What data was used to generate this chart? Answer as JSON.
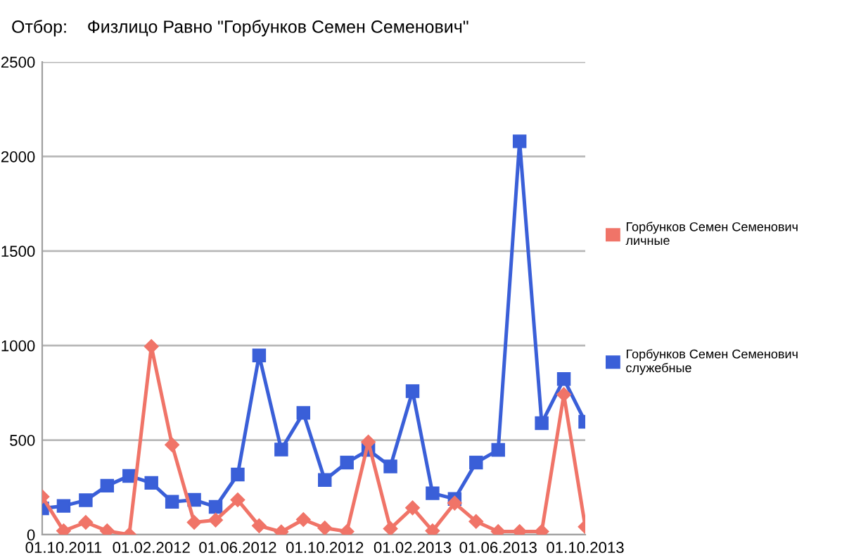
{
  "chart_data": {
    "type": "line",
    "title": "Отбор:    Физлицо Равно \"Горбунков Семен Семенович\"",
    "x": [
      "2011-09-01",
      "2011-10-01",
      "2011-11-01",
      "2011-12-01",
      "2012-01-01",
      "2012-02-01",
      "2012-03-01",
      "2012-04-01",
      "2012-05-01",
      "2012-06-01",
      "2012-07-01",
      "2012-08-01",
      "2012-09-01",
      "2012-10-01",
      "2012-11-01",
      "2012-12-01",
      "2013-01-01",
      "2013-02-01",
      "2013-03-01",
      "2013-04-01",
      "2013-05-01",
      "2013-06-01",
      "2013-07-01",
      "2013-08-01",
      "2013-09-01",
      "2013-10-01"
    ],
    "series": [
      {
        "name": "Горбунков Семен Семенович\nличные",
        "color": "#f07468",
        "marker": "diamond",
        "values": [
          201,
          20,
          65,
          20,
          0,
          995,
          475,
          65,
          77,
          184,
          47,
          15,
          80,
          35,
          17,
          490,
          32,
          142,
          20,
          167,
          70,
          17,
          17,
          17,
          741,
          42
        ]
      },
      {
        "name": "Горбунков Семен Семенович\nслужебные",
        "color": "#3a5fd8",
        "marker": "square",
        "values": [
          139,
          152,
          182,
          259,
          311,
          274,
          174,
          184,
          147,
          318,
          948,
          450,
          644,
          289,
          381,
          448,
          361,
          759,
          219,
          189,
          381,
          448,
          2080,
          590,
          823,
          597
        ]
      }
    ],
    "xlim": [
      "2011-09-01",
      "2013-10-01"
    ],
    "xticks": [
      {
        "value": "2011-10-01",
        "label": "01.10.2011"
      },
      {
        "value": "2012-02-01",
        "label": "01.02.2012"
      },
      {
        "value": "2012-06-01",
        "label": "01.06.2012"
      },
      {
        "value": "2012-10-01",
        "label": "01.10.2012"
      },
      {
        "value": "2013-02-01",
        "label": "01.02.2013"
      },
      {
        "value": "2013-06-01",
        "label": "01.06.2013"
      },
      {
        "value": "2013-10-01",
        "label": "01.10.2013"
      }
    ],
    "ylim": [
      0,
      2500
    ],
    "yticks": [
      0,
      500,
      1000,
      1500,
      2000,
      2500
    ],
    "grid": "y",
    "legend": "right"
  }
}
